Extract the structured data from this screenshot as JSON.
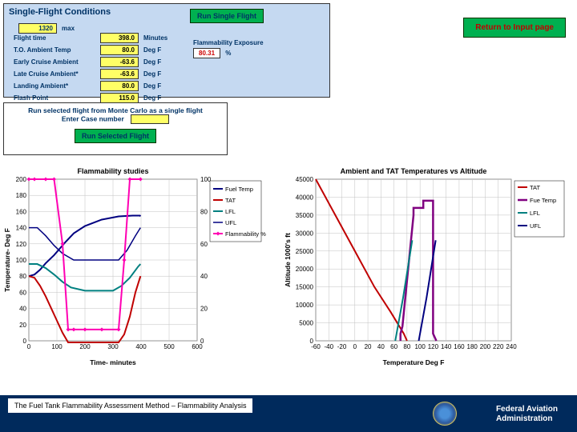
{
  "top_panel": {
    "title": "Single-Flight Conditions",
    "max_label": "max",
    "max_value": "1320",
    "rows": [
      {
        "label": "Flight time",
        "value": "398.0",
        "unit": "Minutes"
      },
      {
        "label": "T.O. Ambient Temp",
        "value": "80.0",
        "unit": "Deg F"
      },
      {
        "label": "Early Cruise Ambient",
        "value": "-63.6",
        "unit": "Deg F"
      },
      {
        "label": "Late Cruise Ambient*",
        "value": "-63.6",
        "unit": "Deg F"
      },
      {
        "label": "Landing Ambient*",
        "value": "80.0",
        "unit": "Deg F"
      },
      {
        "label": "Flash Point",
        "value": "115.0",
        "unit": "Deg F"
      }
    ],
    "run_single_label": "Run Single Flight",
    "flam_exp_label": "Flammability Exposure",
    "flam_exp_value": "80.31",
    "flam_exp_unit": "%",
    "bg_color": "#c5d9f1",
    "val_bg": "#ffff66"
  },
  "return_btn": "Return to Input page",
  "mid_panel": {
    "line1": "Run selected flight from Monte Carlo as a single flight",
    "line2": "Enter Case number",
    "run_sel_label": "Run Selected Flight"
  },
  "chart_left": {
    "title": "Flammability studies",
    "xlabel": "Time- minutes",
    "ylabel": "Temperature- Deg F",
    "y2label": "",
    "xlim": [
      0,
      600
    ],
    "xtick_step": 100,
    "ylim": [
      0,
      200
    ],
    "ytick_step": 20,
    "y2lim": [
      0,
      100
    ],
    "y2tick_step": 20,
    "grid_color": "#c0c0c0",
    "series": [
      {
        "name": "Fuel Temp",
        "color": "#000080",
        "w": 2,
        "pts": [
          [
            0,
            80
          ],
          [
            20,
            82
          ],
          [
            40,
            88
          ],
          [
            60,
            96
          ],
          [
            90,
            106
          ],
          [
            130,
            122
          ],
          [
            160,
            133
          ],
          [
            200,
            142
          ],
          [
            260,
            150
          ],
          [
            320,
            154
          ],
          [
            370,
            155
          ],
          [
            396,
            155
          ],
          [
            398,
            154
          ]
        ]
      },
      {
        "name": "TAT",
        "color": "#c00000",
        "w": 2,
        "pts": [
          [
            0,
            80
          ],
          [
            20,
            78
          ],
          [
            40,
            68
          ],
          [
            60,
            55
          ],
          [
            80,
            40
          ],
          [
            100,
            25
          ],
          [
            120,
            10
          ],
          [
            140,
            -2
          ],
          [
            160,
            -2
          ],
          [
            320,
            -2
          ],
          [
            340,
            8
          ],
          [
            360,
            30
          ],
          [
            380,
            60
          ],
          [
            398,
            80
          ]
        ]
      },
      {
        "name": "LFL",
        "color": "#008080",
        "w": 2,
        "pts": [
          [
            0,
            95
          ],
          [
            30,
            95
          ],
          [
            60,
            90
          ],
          [
            90,
            82
          ],
          [
            120,
            73
          ],
          [
            150,
            66
          ],
          [
            200,
            62
          ],
          [
            300,
            62
          ],
          [
            330,
            68
          ],
          [
            360,
            78
          ],
          [
            390,
            92
          ],
          [
            398,
            95
          ]
        ]
      },
      {
        "name": "UFL",
        "color": "#000080",
        "w": 1.5,
        "pts": [
          [
            0,
            140
          ],
          [
            30,
            140
          ],
          [
            60,
            130
          ],
          [
            90,
            118
          ],
          [
            120,
            108
          ],
          [
            160,
            100
          ],
          [
            260,
            100
          ],
          [
            320,
            100
          ],
          [
            350,
            112
          ],
          [
            380,
            130
          ],
          [
            398,
            140
          ]
        ]
      },
      {
        "name": "Flammability %",
        "color": "#ff00b3",
        "w": 2,
        "marker": "diamond",
        "on_y2": true,
        "pts": [
          [
            0,
            100
          ],
          [
            20,
            100
          ],
          [
            60,
            100
          ],
          [
            90,
            100
          ],
          [
            120,
            60
          ],
          [
            140,
            7
          ],
          [
            160,
            7
          ],
          [
            200,
            7
          ],
          [
            260,
            7
          ],
          [
            320,
            7
          ],
          [
            340,
            50
          ],
          [
            360,
            100
          ],
          [
            398,
            100
          ]
        ]
      }
    ],
    "legend": [
      "Fuel Temp",
      "TAT",
      "LFL",
      "UFL",
      "Flammability %"
    ]
  },
  "chart_right": {
    "title": "Ambient and TAT Temperatures vs Altitude",
    "xlabel": "Temperature Deg F",
    "ylabel": "Altitude 1000's ft",
    "xlim": [
      -60,
      240
    ],
    "xtick_step": 20,
    "ylim": [
      0,
      45000
    ],
    "ytick_step": 5000,
    "grid_color": "#c0c0c0",
    "series": [
      {
        "name": "TAT",
        "color": "#c00000",
        "w": 2,
        "pts": [
          [
            -60,
            45000
          ],
          [
            -30,
            35000
          ],
          [
            0,
            25000
          ],
          [
            30,
            15000
          ],
          [
            55,
            8000
          ],
          [
            75,
            2000
          ],
          [
            80,
            0
          ]
        ]
      },
      {
        "name": "Fue Temp",
        "color": "#800080",
        "w": 2.5,
        "pts": [
          [
            70,
            0
          ],
          [
            70,
            2000
          ],
          [
            73,
            4000
          ],
          [
            90,
            35000
          ],
          [
            90,
            37000
          ],
          [
            105,
            37000
          ],
          [
            105,
            39000
          ],
          [
            120,
            39000
          ],
          [
            120,
            36000
          ],
          [
            120,
            4000
          ],
          [
            120,
            2000
          ],
          [
            125,
            0
          ]
        ]
      },
      {
        "name": "LFL",
        "color": "#008080",
        "w": 2,
        "pts": [
          [
            62,
            0
          ],
          [
            74,
            12000
          ],
          [
            88,
            28000
          ]
        ]
      },
      {
        "name": "UFL",
        "color": "#000080",
        "w": 2,
        "pts": [
          [
            98,
            0
          ],
          [
            110,
            12000
          ],
          [
            124,
            28000
          ]
        ]
      }
    ],
    "legend": [
      "TAT",
      "Fue Temp",
      "LFL",
      "UFL"
    ]
  },
  "footer": {
    "left": "The Fuel Tank Flammability Assessment Method – Flammability Analysis",
    "org1": "Federal Aviation",
    "org2": "Administration",
    "bg": "#002a5c"
  }
}
